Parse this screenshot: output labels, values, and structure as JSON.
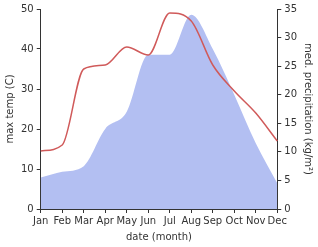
{
  "chart_data": {
    "type": "line",
    "xlabel": "date (month)",
    "ylabel": "max temp (C)",
    "y2label": "med. precipitation (kg/m²)",
    "categories": [
      "Jan",
      "Feb",
      "Mar",
      "Apr",
      "May",
      "Jun",
      "Jul",
      "Aug",
      "Sep",
      "Oct",
      "Nov",
      "Dec"
    ],
    "series": [
      {
        "name": "med. precipitation (kg/m²)",
        "type": "area",
        "axis": "y2",
        "color": "#b3bff2",
        "values": [
          5.5,
          6.5,
          7.5,
          14,
          17,
          27,
          27,
          34,
          28,
          20,
          11.5,
          4.5
        ]
      },
      {
        "name": "max temp (C)",
        "type": "line",
        "color": "#d05a5a",
        "values": [
          14.5,
          16,
          35,
          36,
          40.5,
          38.5,
          49,
          47,
          36,
          29.5,
          24,
          17
        ]
      }
    ],
    "ylim": [
      0,
      50
    ],
    "yticks": [
      0,
      10,
      20,
      30,
      40,
      50
    ],
    "y2lim": [
      0,
      35
    ],
    "y2ticks": [
      0,
      5,
      10,
      15,
      20,
      25,
      30,
      35
    ],
    "grid": false
  }
}
